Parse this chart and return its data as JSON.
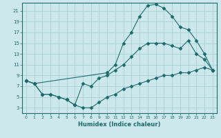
{
  "xlabel": "Humidex (Indice chaleur)",
  "bg_color": "#cde8ec",
  "grid_color": "#aacfd4",
  "line_color": "#1a6b6b",
  "xlim": [
    -0.5,
    23.5
  ],
  "ylim": [
    2,
    22.5
  ],
  "xticks": [
    0,
    1,
    2,
    3,
    4,
    5,
    6,
    7,
    8,
    9,
    10,
    11,
    12,
    13,
    14,
    15,
    16,
    17,
    18,
    19,
    20,
    21,
    22,
    23
  ],
  "yticks": [
    3,
    5,
    7,
    9,
    11,
    13,
    15,
    17,
    19,
    21
  ],
  "upper_x": [
    0,
    1,
    10,
    11,
    12,
    13,
    14,
    15,
    16,
    17,
    18,
    19,
    20,
    21,
    22,
    23
  ],
  "upper_y": [
    8,
    7.5,
    9.5,
    11,
    15,
    17,
    20,
    22,
    22.2,
    21.5,
    20,
    18,
    17.5,
    15.5,
    13,
    10
  ],
  "mid_x": [
    0,
    1,
    2,
    3,
    4,
    5,
    6,
    7,
    8,
    9,
    10,
    11,
    12,
    13,
    14,
    15,
    16,
    17,
    18,
    19,
    20,
    21,
    22,
    23
  ],
  "mid_y": [
    8,
    7.5,
    5.5,
    5.5,
    5.0,
    4.5,
    3.5,
    7.5,
    7.0,
    8.5,
    9.0,
    10.0,
    11.0,
    12.5,
    14.0,
    15.0,
    15.0,
    15.0,
    14.5,
    14.0,
    15.5,
    13.0,
    12.0,
    10.0
  ],
  "lower_x": [
    0,
    1,
    2,
    3,
    4,
    5,
    6,
    7,
    8,
    9,
    10,
    11,
    12,
    13,
    14,
    15,
    16,
    17,
    18,
    19,
    20,
    21,
    22,
    23
  ],
  "lower_y": [
    8,
    7.5,
    5.5,
    5.5,
    5.0,
    4.5,
    3.5,
    3.0,
    3.0,
    4.0,
    5.0,
    5.5,
    6.5,
    7.0,
    7.5,
    8.0,
    8.5,
    9.0,
    9.0,
    9.5,
    9.5,
    10.0,
    10.5,
    10.0
  ]
}
